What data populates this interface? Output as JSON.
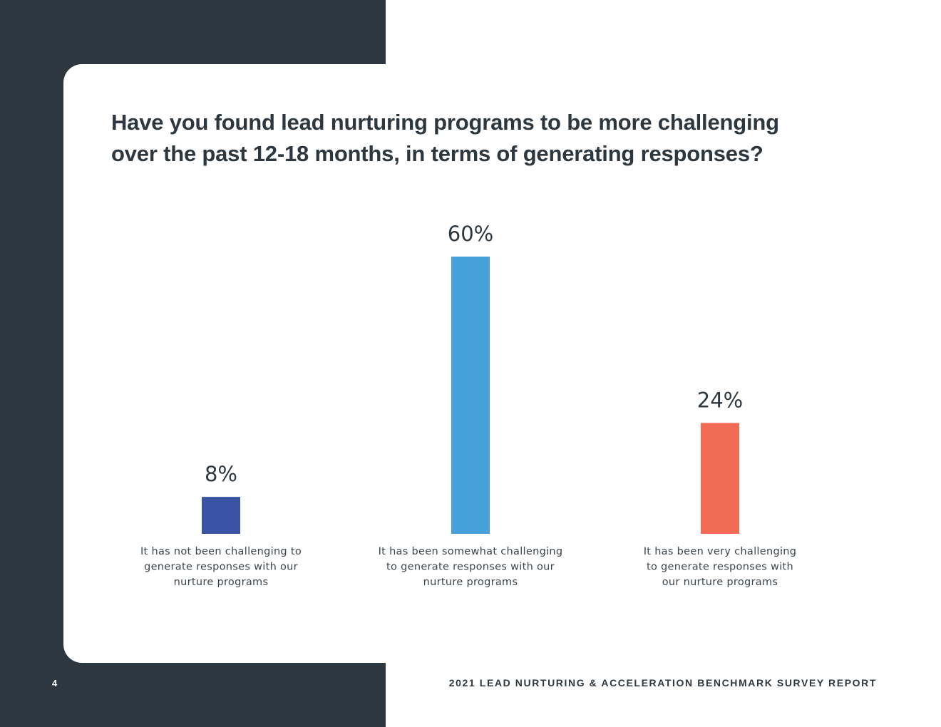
{
  "page": {
    "number": "4",
    "report_title": "2021 LEAD NURTURING & ACCELERATION BENCHMARK SURVEY REPORT"
  },
  "question": {
    "line1": "Have you found lead nurturing programs to be more challenging",
    "line2": "over the past 12-18 months, in terms of generating responses?"
  },
  "chart_data": {
    "type": "bar",
    "categories": [
      [
        "It has not been challenging to",
        "generate responses with our",
        "nurture programs"
      ],
      [
        "It has been somewhat challenging",
        "to generate responses with our",
        "nurture programs"
      ],
      [
        "It has been very challenging",
        "to generate responses with",
        "our nurture programs"
      ]
    ],
    "values": [
      8,
      60,
      24
    ],
    "value_labels": [
      "8%",
      "60%",
      "24%"
    ],
    "colors": [
      "#3a53a4",
      "#46a0d9",
      "#f26c55"
    ],
    "title": "Have you found lead nurturing programs to be more challenging over the past 12-18 months, in terms of generating responses?",
    "xlabel": "",
    "ylabel": "",
    "ylim": [
      0,
      60
    ],
    "grid": false,
    "legend": "none"
  }
}
